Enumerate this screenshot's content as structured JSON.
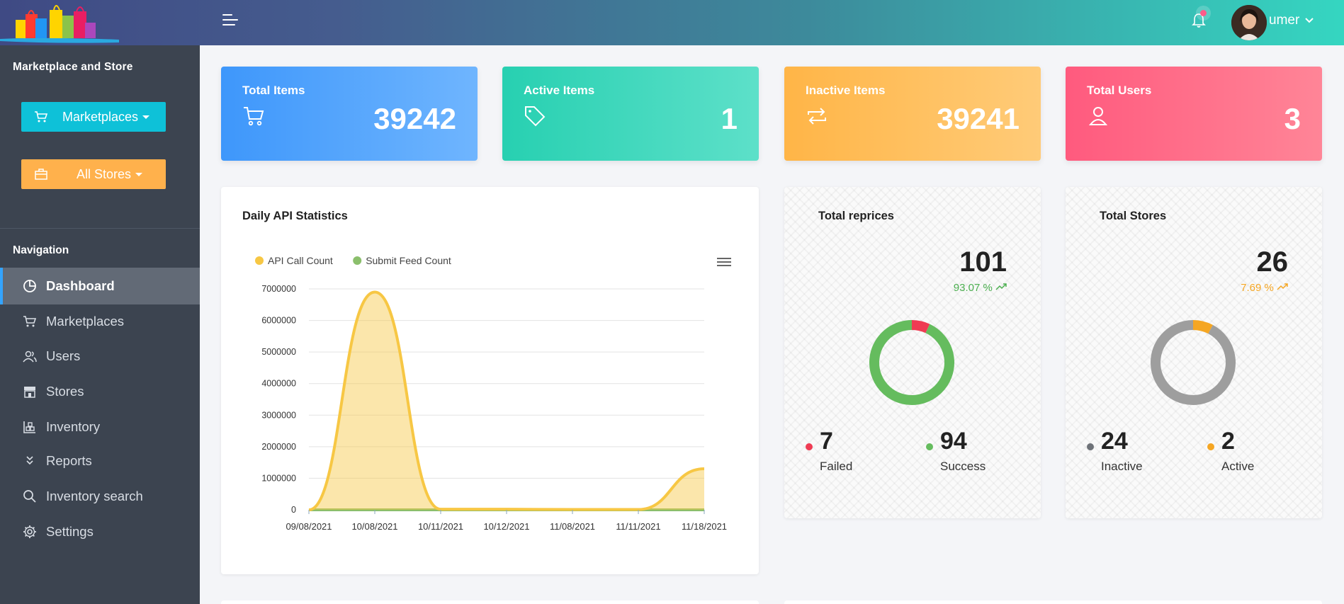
{
  "header": {
    "username": "umer"
  },
  "sidebar": {
    "title": "Marketplace and Store",
    "marketplaces_button": "Marketplaces",
    "stores_button": "All Stores",
    "nav_heading": "Navigation",
    "items": [
      {
        "label": "Dashboard",
        "icon": "pie-chart-icon",
        "active": true
      },
      {
        "label": "Marketplaces",
        "icon": "cart-icon"
      },
      {
        "label": "Users",
        "icon": "users-icon"
      },
      {
        "label": "Stores",
        "icon": "store-icon"
      },
      {
        "label": "Inventory",
        "icon": "inventory-icon"
      },
      {
        "label": "Reports",
        "icon": "chevrons-down-icon"
      },
      {
        "label": "Inventory search",
        "icon": "search-icon"
      },
      {
        "label": "Settings",
        "icon": "gear-icon"
      }
    ]
  },
  "stats": [
    {
      "title": "Total Items",
      "value": "39242",
      "icon": "cart-icon"
    },
    {
      "title": "Active Items",
      "value": "1",
      "icon": "tag-icon"
    },
    {
      "title": "Inactive Items",
      "value": "39241",
      "icon": "repeat-icon"
    },
    {
      "title": "Total Users",
      "value": "3",
      "icon": "user-icon"
    }
  ],
  "api_chart": {
    "title": "Daily API Statistics"
  },
  "chart_data": {
    "type": "area",
    "x": [
      "09/08/2021",
      "10/08/2021",
      "10/11/2021",
      "10/12/2021",
      "11/08/2021",
      "11/11/2021",
      "11/18/2021"
    ],
    "series": [
      {
        "name": "API Call Count",
        "color": "#f7c744",
        "values": [
          0,
          6900000,
          20000,
          20000,
          10000,
          10000,
          1300000
        ]
      },
      {
        "name": "Submit Feed Count",
        "color": "#8bbf6c",
        "values": [
          0,
          0,
          0,
          0,
          0,
          0,
          0
        ]
      }
    ],
    "y_ticks": [
      0,
      1000000,
      2000000,
      3000000,
      4000000,
      5000000,
      6000000,
      7000000
    ],
    "ylim": [
      0,
      7000000
    ],
    "legend": "top-left",
    "grid": true
  },
  "reprices": {
    "title": "Total reprices",
    "total": "101",
    "percent": "93.07 %",
    "percent_color": "#4caf50",
    "segments": [
      {
        "label": "Failed",
        "value": "7",
        "color": "#ef3b53"
      },
      {
        "label": "Success",
        "value": "94",
        "color": "#65bc5e"
      }
    ]
  },
  "stores_panel": {
    "title": "Total Stores",
    "total": "26",
    "percent": "7.69 %",
    "percent_color": "#f5a623",
    "segments": [
      {
        "label": "Inactive",
        "value": "24",
        "color": "#9e9e9e"
      },
      {
        "label": "Active",
        "value": "2",
        "color": "#f5a623"
      }
    ]
  }
}
